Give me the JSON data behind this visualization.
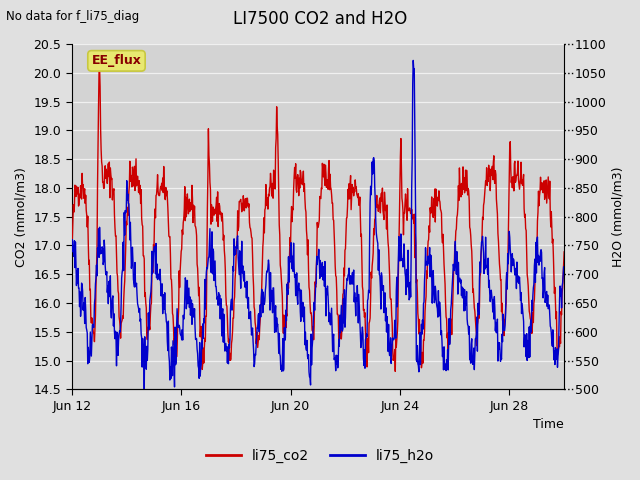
{
  "title": "LI7500 CO2 and H2O",
  "subtitle": "No data for f_li75_diag",
  "xlabel": "Time",
  "ylabel_left": "CO2 (mmol/m3)",
  "ylabel_right": "H2O (mmol/m3)",
  "ylim_left": [
    14.5,
    20.5
  ],
  "ylim_right": [
    500,
    1100
  ],
  "xtick_labels": [
    "Jun 12",
    "Jun 16",
    "Jun 20",
    "Jun 24",
    "Jun 28"
  ],
  "legend_labels": [
    "li75_co2",
    "li75_h2o"
  ],
  "co2_color": "#cc0000",
  "h2o_color": "#0000cc",
  "background_color": "#e0e0e0",
  "plot_bg_color": "#d3d3d3",
  "grid_color": "#f0f0f0",
  "annotation_text": "EE_flux",
  "annotation_box_facecolor": "#e8e870",
  "annotation_box_edgecolor": "#c8c840",
  "annotation_text_color": "#880000",
  "line_width": 1.0,
  "n_points": 960,
  "seed": 42
}
